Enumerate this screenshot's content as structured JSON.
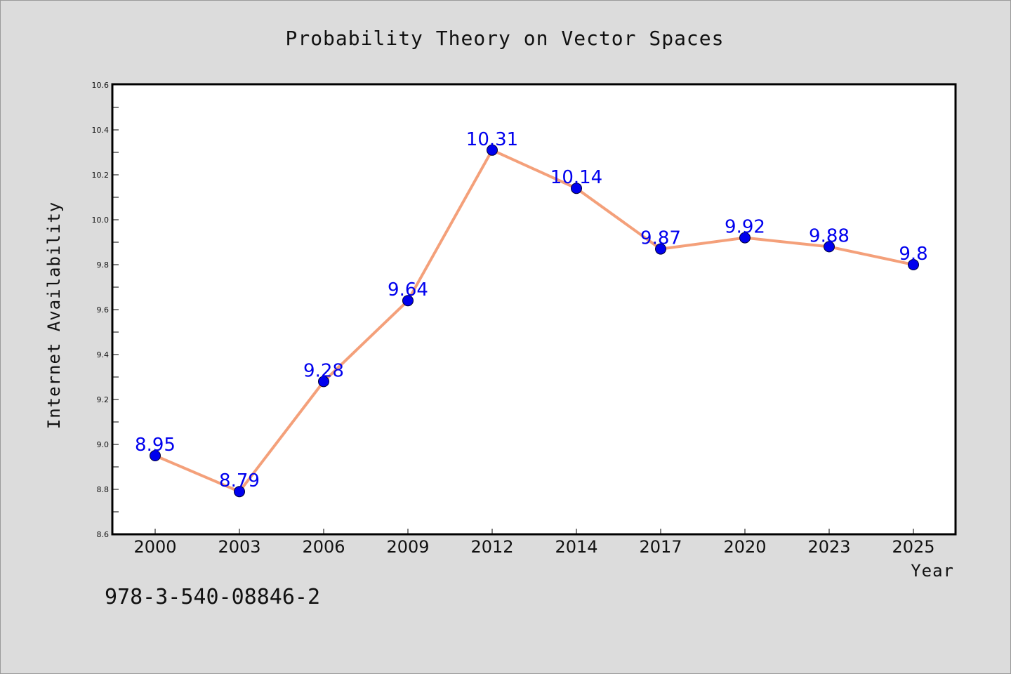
{
  "chart_data": {
    "type": "line",
    "title": "Probability Theory on Vector Spaces",
    "xlabel": "Year",
    "ylabel": "Internet Availability",
    "categories": [
      "2000",
      "2003",
      "2006",
      "2009",
      "2012",
      "2014",
      "2017",
      "2020",
      "2023",
      "2025"
    ],
    "series": [
      {
        "values": [
          8.95,
          8.79,
          9.28,
          9.64,
          10.31,
          10.14,
          9.87,
          9.92,
          9.88,
          9.8
        ],
        "data_labels": [
          "8.95",
          "8.79",
          "9.28",
          "9.64",
          "10.31",
          "10.14",
          "9.87",
          "9.92",
          "9.88",
          "9.8"
        ]
      }
    ],
    "ylim": [
      8.6,
      10.6
    ],
    "yticks": [
      "8.6",
      "8.8",
      "9.0",
      "9.2",
      "9.4",
      "9.6",
      "9.8",
      "10.0",
      "10.2",
      "10.4",
      "10.6"
    ],
    "grid": false,
    "colors": {
      "line": "#f4a07a",
      "marker": "#0000ee",
      "marker_edge": "#000033",
      "data_label": "#0000ee",
      "background": "#dcdcdc",
      "plot_background": "#ffffff"
    }
  },
  "annotation": "978-3-540-08846-2"
}
